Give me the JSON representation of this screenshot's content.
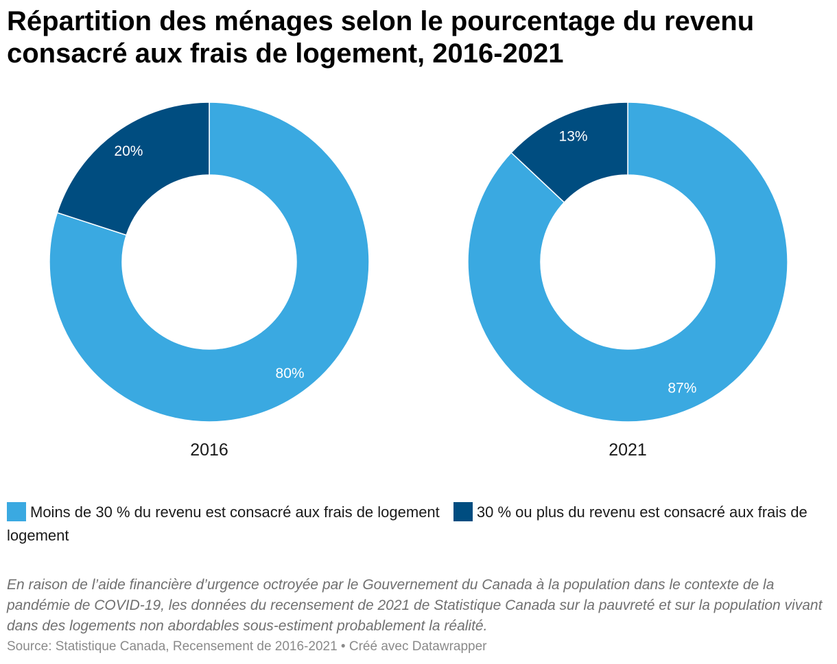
{
  "title": "Répartition des ménages selon le pourcentage du revenu consacré aux frais de logement, 2016-2021",
  "legend": [
    {
      "label": "Moins de 30 % du revenu est consacré aux frais de logement",
      "color": "#3aa9e1"
    },
    {
      "label": "30 % ou plus du revenu est consacré aux frais de logement",
      "color": "#004d80"
    }
  ],
  "note": "En raison de l’aide financière d’urgence octroyée par le Gouvernement du Canada à la population dans le contexte de la pandémie de COVID-19, les données du recensement de 2021 de Statistique Canada sur la pauvreté et sur la population vivant dans des logements non abordables sous-estiment probablement la réalité.",
  "source": "Source: Statistique Canada, Recensement de 2016-2021 • Créé avec Datawrapper",
  "chart_data": [
    {
      "type": "pie",
      "donut": true,
      "xlabel": "2016",
      "categories": [
        "Moins de 30 % du revenu est consacré aux frais de logement",
        "30 % ou plus du revenu est consacré aux frais de logement"
      ],
      "values": [
        80,
        20
      ],
      "value_labels": [
        "80%",
        "20%"
      ],
      "colors": [
        "#3aa9e1",
        "#004d80"
      ]
    },
    {
      "type": "pie",
      "donut": true,
      "xlabel": "2021",
      "categories": [
        "Moins de 30 % du revenu est consacré aux frais de logement",
        "30 % ou plus du revenu est consacré aux frais de logement"
      ],
      "values": [
        87,
        13
      ],
      "value_labels": [
        "87%",
        "13%"
      ],
      "colors": [
        "#3aa9e1",
        "#004d80"
      ]
    }
  ]
}
